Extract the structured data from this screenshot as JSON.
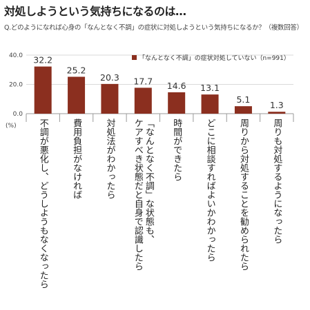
{
  "header": {
    "title": "対処しようという気持ちになるのは…",
    "question": "Q.どのようになれば心身の「なんとなく不調」の症状に対処しようという気持ちになるか？（複数回答）"
  },
  "colors": {
    "bar": "#8b2f1f",
    "axis": "#999999",
    "grid": "#d9d9d9"
  },
  "chart_data": {
    "type": "bar",
    "unit_label": "(%)",
    "ylim": [
      0,
      40
    ],
    "yticks": [
      "0.0",
      "20.0",
      "40.0"
    ],
    "grid": true,
    "legend_position": "top-right",
    "series": [
      {
        "name": "「なんとなく不調」の症状対処していない（n=991）",
        "values": [
          32.2,
          25.2,
          20.3,
          17.7,
          14.6,
          13.1,
          5.1,
          1.3
        ]
      }
    ],
    "value_labels": [
      "32.2",
      "25.2",
      "20.3",
      "17.7",
      "14.6",
      "13.1",
      "5.1",
      "1.3"
    ],
    "categories": [
      "不調が悪化し、どうしようもなくなったら",
      "費用負担がなければ",
      "対処法がわかったら",
      "「なんとなく不調」な状態も、ケアすべき状態だと自身で認識したら",
      "時間ができたら",
      "どこに相談すればよいかわかったら",
      "周りから対処することを勧められたら",
      "周りも対処するようになったら"
    ],
    "category_lines": [
      [
        "不調が悪化し、どうしようもなくなったら"
      ],
      [
        "費用負担がなければ"
      ],
      [
        "対処法がわかったら"
      ],
      [
        "ケアすべき状態だと自身で認識したら",
        "「なんとなく不調」な状態も、"
      ],
      [
        "時間ができたら"
      ],
      [
        "どこに相談すればよいかわかったら"
      ],
      [
        "周りから対処することを勧められたら"
      ],
      [
        "周りも対処するようになったら"
      ]
    ]
  }
}
